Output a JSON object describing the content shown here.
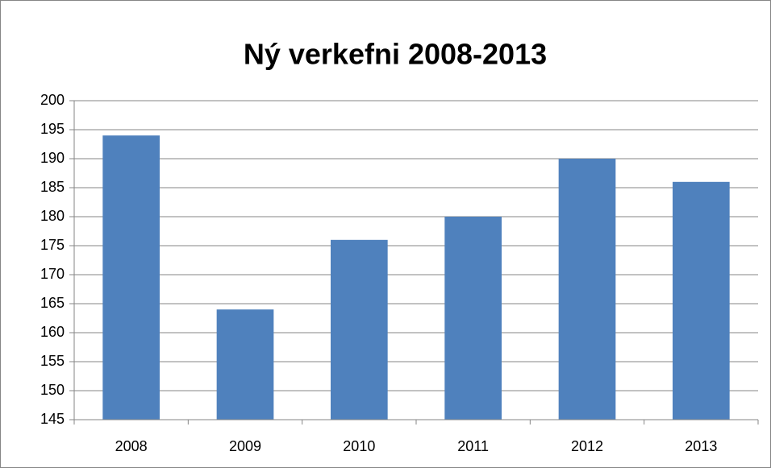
{
  "chart_data": {
    "type": "bar",
    "title": "Ný verkefni 2008-2013",
    "categories": [
      "2008",
      "2009",
      "2010",
      "2011",
      "2012",
      "2013"
    ],
    "values": [
      194,
      164,
      176,
      180,
      190,
      186
    ],
    "color": "#4f81bd",
    "ylim": [
      145,
      200
    ],
    "yticks": [
      145,
      150,
      155,
      160,
      165,
      170,
      175,
      180,
      185,
      190,
      195,
      200
    ],
    "grid": true
  }
}
